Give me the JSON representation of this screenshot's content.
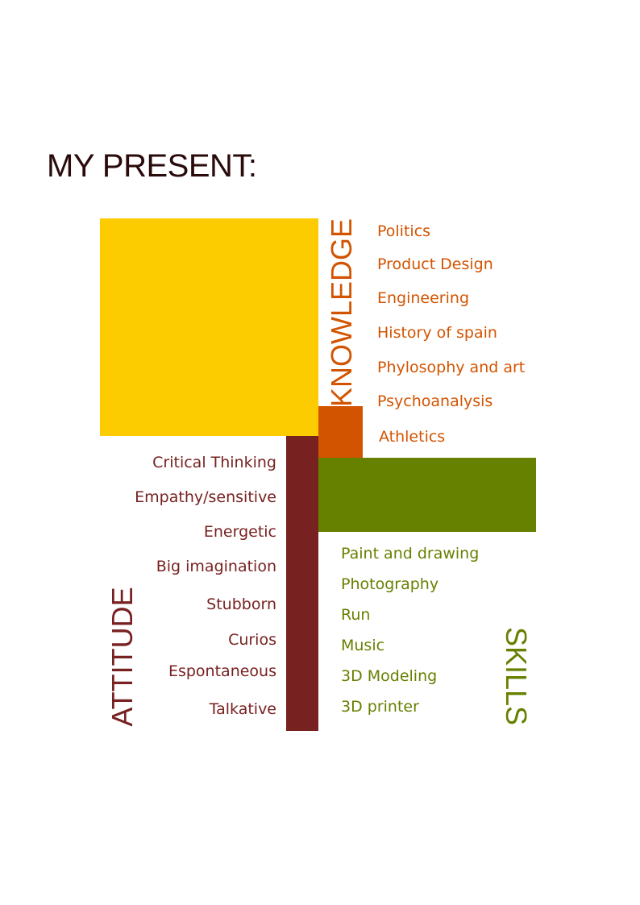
{
  "title": "MY PRESENT:",
  "colors": {
    "knowledge": "#d35400",
    "knowledge_block": "#fccb00",
    "knowledge_accent": "#d35400",
    "skills": "#668000",
    "attitude": "#782121",
    "title": "#2a0a0a"
  },
  "knowledge": {
    "label": "KNOWLEDGE",
    "items": [
      "Politics",
      "Product Design",
      "Engineering",
      "History of spain",
      "Phylosophy and art",
      "Psychoanalysis",
      "Athletics"
    ]
  },
  "attitude": {
    "label": "ATTITUDE",
    "items": [
      "Critical Thinking",
      "Empathy/sensitive",
      "Energetic",
      "Big imagination",
      "Stubborn",
      "Curios",
      "Espontaneous",
      "Talkative"
    ]
  },
  "skills": {
    "label": "SKILLS",
    "items": [
      "Paint and drawing",
      "Photography",
      "Run",
      "Music",
      "3D Modeling",
      "3D printer"
    ]
  }
}
